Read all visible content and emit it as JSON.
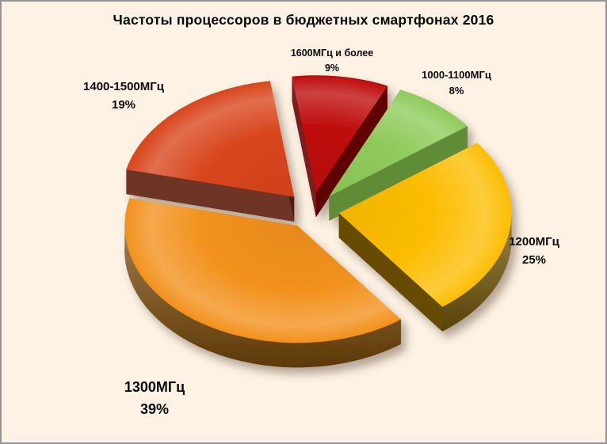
{
  "frame": {
    "background_color": "#FDF2E4",
    "border_color": "#949494"
  },
  "chart_data": {
    "type": "pie",
    "title": "Частоты процессоров в бюджетных смартфонах 2016",
    "unit": "percent",
    "total": 100,
    "slices": [
      {
        "label": "1600МГц и более",
        "value": 9,
        "pct_label": "9%",
        "color_top": "#BE0B0B",
        "color_side": "#6E0606"
      },
      {
        "label": "1000-1100МГц",
        "value": 8,
        "pct_label": "8%",
        "color_top": "#90CA5B",
        "color_side": "#6D9F40"
      },
      {
        "label": "1200МГц",
        "value": 25,
        "pct_label": "25%",
        "color_top": "#FCBD03",
        "color_side": "#745607"
      },
      {
        "label": "1300МГц",
        "value": 39,
        "pct_label": "39%",
        "color_top": "#F2911C",
        "color_side": "#7C4A08"
      },
      {
        "label": "1400-1500МГц",
        "value": 19,
        "pct_label": "19%",
        "color_top": "#D8451B",
        "color_side": "#5E1F10"
      }
    ],
    "layout": {
      "style": "3d-exploded",
      "start_angle_deg": -8,
      "direction": "clockwise",
      "legend": "none",
      "data_labels": "outside-two-line"
    }
  }
}
